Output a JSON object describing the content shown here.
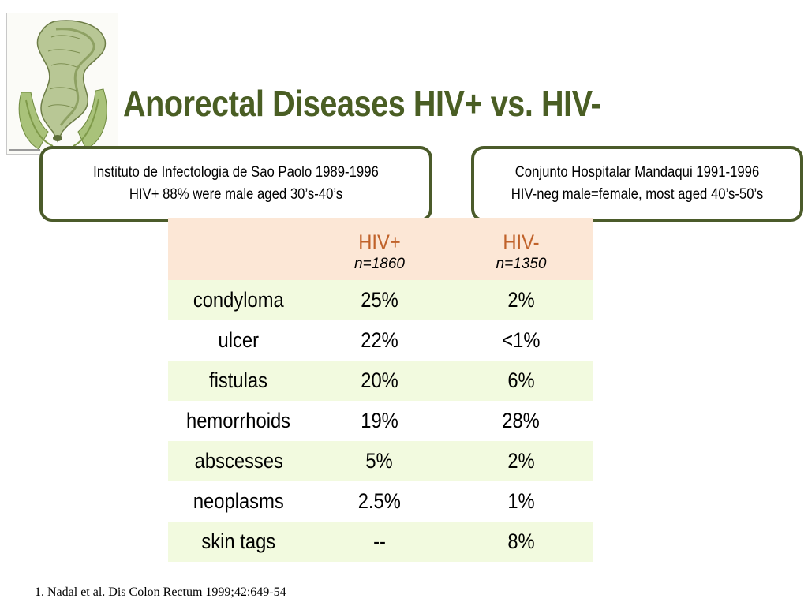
{
  "slide": {
    "title": "Anorectal Diseases HIV+ vs. HIV-",
    "colors": {
      "title": "#4a5e24",
      "group_header": "#c0622a",
      "callout_border": "#4b5b2a",
      "header_bg": "#fce7d6",
      "row_shade": "#f2fadf"
    },
    "illustration": {
      "icon": "anorectal-anatomy-illustration"
    }
  },
  "callouts": {
    "left": {
      "line1": "Instituto de Infectologia de Sao Paolo 1989-1996",
      "line2": "HIV+ 88% were male aged 30’s-40’s"
    },
    "right": {
      "line1": "Conjunto Hospitalar Mandaqui 1991-1996",
      "line2": "HIV-neg male=female, most aged 40’s-50’s"
    }
  },
  "table": {
    "columns": [
      {
        "label": "HIV+",
        "n": "n=1860"
      },
      {
        "label": "HIV-",
        "n": "n=1350"
      }
    ],
    "rows": [
      {
        "condition": "condyloma",
        "hiv_pos": "25%",
        "hiv_neg": "2%"
      },
      {
        "condition": "ulcer",
        "hiv_pos": "22%",
        "hiv_neg": "<1%"
      },
      {
        "condition": "fistulas",
        "hiv_pos": "20%",
        "hiv_neg": "6%"
      },
      {
        "condition": "hemorrhoids",
        "hiv_pos": "19%",
        "hiv_neg": "28%"
      },
      {
        "condition": "abscesses",
        "hiv_pos": "5%",
        "hiv_neg": "2%"
      },
      {
        "condition": "neoplasms",
        "hiv_pos": "2.5%",
        "hiv_neg": "1%"
      },
      {
        "condition": "skin tags",
        "hiv_pos": "--",
        "hiv_neg": "8%"
      }
    ]
  },
  "footnote": "1. Nadal et al. Dis Colon Rectum 1999;42:649-54"
}
